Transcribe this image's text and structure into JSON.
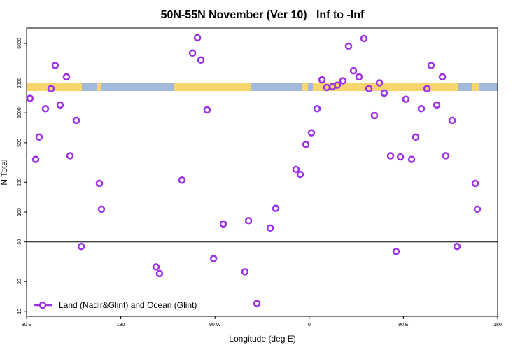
{
  "chart_data": {
    "type": "scatter",
    "title": "50N-55N November (Ver 10)   Inf to -Inf",
    "x_label": "Longitude (deg E)",
    "y_label": "N Total",
    "log_y": true,
    "reference_line": 50,
    "xlim": [
      90,
      540
    ],
    "ylim": [
      8.9,
      7150
    ],
    "xticks": [
      {
        "value": 90,
        "label": "90 E"
      },
      {
        "value": 180,
        "label": "180"
      },
      {
        "value": 270,
        "label": "90 W"
      },
      {
        "value": 360,
        "label": "0"
      },
      {
        "value": 450,
        "label": "90 E"
      },
      {
        "value": 540,
        "label": "180"
      }
    ],
    "yticks": [
      10,
      20,
      50,
      100,
      200,
      500,
      1000,
      2000,
      5000
    ],
    "legend": "bottom-left",
    "x": [
      93.3,
      98.7,
      102,
      108,
      113.4,
      117.4,
      122.1,
      128.1,
      131.5,
      137.5,
      142.2,
      159.5,
      161.5,
      213.7,
      217,
      238.4,
      248.5,
      253.2,
      256.5,
      262.5,
      268.6,
      278,
      298.6,
      302,
      310,
      322.7,
      328,
      347.4,
      351.4,
      356.8,
      362.1,
      367.5,
      372.2,
      376.9,
      382.2,
      386.9,
      392.2,
      397.6,
      402.3,
      407.6,
      412.3,
      417,
      422.3,
      427,
      431.7,
      437.7,
      443.1,
      447.1,
      452.4,
      457.8,
      461.8,
      467.1,
      472.5,
      476.5,
      481.8,
      487.2,
      490.5,
      496.6,
      501.2,
      518.6,
      520.6
    ],
    "series": [
      {
        "name": "Land (Nadir&Glint) and Ocean (Glint)",
        "color": "#9b30e8",
        "values": [
          1400,
          340,
          570,
          1100,
          1750,
          3000,
          1200,
          2300,
          370,
          840,
          45,
          195,
          107,
          28,
          24,
          210,
          4000,
          5700,
          3400,
          1070,
          34,
          76,
          25,
          82,
          12,
          69,
          109,
          270,
          240,
          480,
          630,
          1100,
          2150,
          1800,
          1830,
          1900,
          2100,
          4700,
          2650,
          2300,
          5600,
          1750,
          940,
          2000,
          1580,
          370,
          40,
          360,
          1370,
          340,
          570,
          1100,
          1750,
          3000,
          1200,
          2300,
          370,
          840,
          45,
          195,
          107
        ]
      }
    ]
  }
}
